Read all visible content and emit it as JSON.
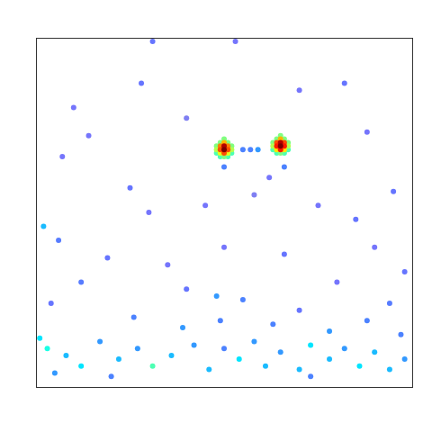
{
  "chart_data": {
    "type": "heatmap",
    "color": "jet",
    "grid": false,
    "tick_labels": false,
    "xlim": [
      0,
      100
    ],
    "ylim": [
      0,
      100
    ],
    "zlim": [
      0,
      1
    ],
    "cells": [
      [
        31,
        99,
        0.15
      ],
      [
        53,
        99,
        0.12
      ],
      [
        28,
        87,
        0.15
      ],
      [
        10,
        80,
        0.12
      ],
      [
        70,
        85,
        0.12
      ],
      [
        82,
        87,
        0.15
      ],
      [
        7,
        66,
        0.12
      ],
      [
        14,
        72,
        0.12
      ],
      [
        25,
        57,
        0.15
      ],
      [
        40,
        77,
        0.1
      ],
      [
        62,
        60,
        0.12
      ],
      [
        88,
        73,
        0.12
      ],
      [
        95,
        56,
        0.15
      ],
      [
        2,
        46,
        0.3
      ],
      [
        6,
        42,
        0.18
      ],
      [
        30,
        50,
        0.12
      ],
      [
        45,
        52,
        0.12
      ],
      [
        58,
        55,
        0.1
      ],
      [
        75,
        52,
        0.12
      ],
      [
        85,
        48,
        0.15
      ],
      [
        90,
        40,
        0.12
      ],
      [
        19,
        37,
        0.15
      ],
      [
        35,
        35,
        0.12
      ],
      [
        50,
        40,
        0.12
      ],
      [
        66,
        38,
        0.15
      ],
      [
        80,
        30,
        0.12
      ],
      [
        98,
        33,
        0.15
      ],
      [
        12,
        30,
        0.18
      ],
      [
        40,
        28,
        0.15
      ],
      [
        55,
        25,
        0.2
      ],
      [
        70,
        22,
        0.15
      ],
      [
        94,
        24,
        0.18
      ],
      [
        4,
        24,
        0.15
      ],
      [
        26,
        20,
        0.2
      ],
      [
        39,
        17,
        0.25
      ],
      [
        49,
        19,
        0.2
      ],
      [
        63,
        18,
        0.2
      ],
      [
        78,
        16,
        0.25
      ],
      [
        88,
        19,
        0.2
      ],
      [
        97,
        15,
        0.2
      ],
      [
        1,
        14,
        0.35
      ],
      [
        3,
        11,
        0.4
      ],
      [
        8,
        9,
        0.3
      ],
      [
        12,
        6,
        0.35
      ],
      [
        17,
        13,
        0.25
      ],
      [
        22,
        8,
        0.3
      ],
      [
        27,
        11,
        0.25
      ],
      [
        31,
        6,
        0.45
      ],
      [
        36,
        9,
        0.3
      ],
      [
        42,
        12,
        0.25
      ],
      [
        46,
        5,
        0.3
      ],
      [
        50,
        11,
        0.2
      ],
      [
        54,
        8,
        0.35
      ],
      [
        58,
        13,
        0.25
      ],
      [
        61,
        6,
        0.3
      ],
      [
        65,
        10,
        0.25
      ],
      [
        70,
        5,
        0.3
      ],
      [
        73,
        12,
        0.35
      ],
      [
        78,
        8,
        0.3
      ],
      [
        82,
        11,
        0.25
      ],
      [
        86,
        6,
        0.35
      ],
      [
        90,
        10,
        0.3
      ],
      [
        94,
        5,
        0.3
      ],
      [
        98,
        8,
        0.25
      ],
      [
        48,
        26,
        0.25
      ],
      [
        73,
        3,
        0.2
      ],
      [
        20,
        3,
        0.2
      ],
      [
        5,
        4,
        0.25
      ],
      [
        55,
        68,
        0.2
      ],
      [
        57,
        68,
        0.2
      ],
      [
        59,
        68,
        0.25
      ],
      [
        66,
        63,
        0.2
      ],
      [
        50,
        63,
        0.2
      ],
      [
        48,
        67,
        0.45
      ],
      [
        52,
        67,
        0.45
      ],
      [
        49,
        66,
        0.45
      ],
      [
        51,
        66,
        0.45
      ],
      [
        50,
        66,
        0.5
      ],
      [
        50,
        71,
        0.5
      ],
      [
        48,
        69,
        0.5
      ],
      [
        52,
        69,
        0.5
      ],
      [
        49,
        70,
        0.5
      ],
      [
        51,
        70,
        0.5
      ],
      [
        48,
        68,
        0.55
      ],
      [
        52,
        68,
        0.55
      ],
      [
        49,
        67,
        0.6
      ],
      [
        51,
        67,
        0.6
      ],
      [
        50,
        70,
        0.7
      ],
      [
        49,
        69,
        0.75
      ],
      [
        51,
        69,
        0.75
      ],
      [
        49,
        68,
        0.8
      ],
      [
        51,
        68,
        0.8
      ],
      [
        50,
        67,
        0.8
      ],
      [
        50,
        69,
        0.95
      ],
      [
        50,
        68,
        1.0
      ],
      [
        63,
        68,
        0.45
      ],
      [
        67,
        68,
        0.45
      ],
      [
        64,
        67,
        0.45
      ],
      [
        66,
        67,
        0.45
      ],
      [
        65,
        67,
        0.5
      ],
      [
        65,
        72,
        0.5
      ],
      [
        63,
        70,
        0.5
      ],
      [
        67,
        70,
        0.5
      ],
      [
        64,
        71,
        0.5
      ],
      [
        66,
        71,
        0.5
      ],
      [
        63,
        69,
        0.55
      ],
      [
        67,
        69,
        0.55
      ],
      [
        64,
        68,
        0.65
      ],
      [
        66,
        68,
        0.65
      ],
      [
        65,
        71,
        0.7
      ],
      [
        64,
        70,
        0.8
      ],
      [
        66,
        70,
        0.8
      ],
      [
        64,
        69,
        0.85
      ],
      [
        66,
        69,
        0.85
      ],
      [
        65,
        68,
        0.85
      ],
      [
        65,
        70,
        0.95
      ],
      [
        65,
        69,
        1.0
      ]
    ]
  }
}
